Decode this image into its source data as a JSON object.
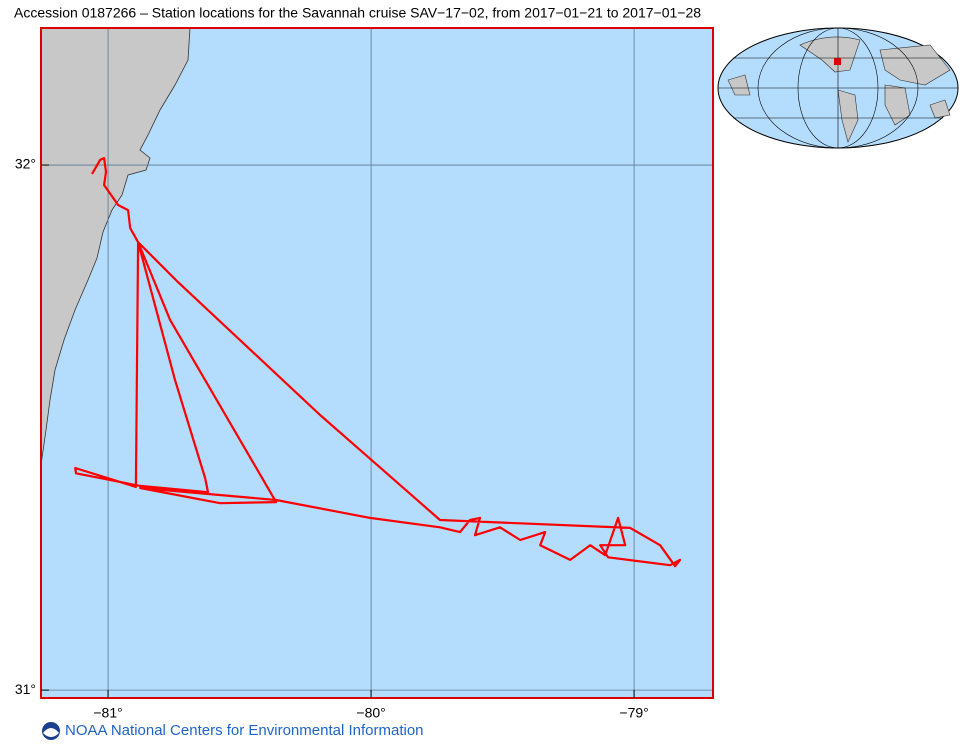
{
  "chart_data": {
    "type": "track",
    "title": "Accession 0187266 – Station locations for the Savannah cruise SAV−17−02, from 2017−01−21 to 2017−01−28",
    "footer": "NOAA National Centers for Environmental Information",
    "color": "#ff0000",
    "grid": true,
    "xlim": [
      -81.255,
      -78.7
    ],
    "ylim": [
      30.985,
      32.261
    ],
    "xticks": [
      {
        "value": -81,
        "label": "−81°"
      },
      {
        "value": -80,
        "label": "−80°"
      },
      {
        "value": -79,
        "label": "−79°"
      }
    ],
    "yticks": [
      {
        "value": 31,
        "label": "31°"
      },
      {
        "value": 32,
        "label": "32°"
      }
    ],
    "x": [
      -81.061,
      -81.03,
      -81.015,
      -81.008,
      -81.015,
      -80.962,
      -80.924,
      -80.916,
      -80.886,
      -80.894,
      -81.125,
      -81.122,
      -80.878,
      -80.62,
      -80.631,
      -80.745,
      -80.886,
      -80.764,
      -80.361,
      -80.574,
      -80.878,
      -80.361,
      -80.004,
      -79.738,
      -79.662,
      -79.624,
      -79.586,
      -79.605,
      -79.51,
      -79.433,
      -79.338,
      -79.357,
      -79.243,
      -79.167,
      -79.11,
      -79.061,
      -79.034,
      -79.129,
      -79.099,
      -78.863,
      -78.825,
      -78.844,
      -78.901,
      -79.015,
      -79.738,
      -80.194,
      -80.734,
      -80.886
    ],
    "values": [
      31.983,
      32.01,
      32.013,
      31.987,
      31.962,
      31.924,
      31.914,
      31.88,
      31.853,
      31.387,
      31.423,
      31.413,
      31.389,
      31.377,
      31.404,
      31.59,
      31.853,
      31.705,
      31.358,
      31.356,
      31.385,
      31.362,
      31.328,
      31.31,
      31.301,
      31.324,
      31.328,
      31.295,
      31.31,
      31.286,
      31.301,
      31.276,
      31.248,
      31.276,
      31.257,
      31.328,
      31.276,
      31.276,
      31.253,
      31.238,
      31.248,
      31.236,
      31.276,
      31.309,
      31.324,
      31.524,
      31.777,
      31.853
    ]
  }
}
